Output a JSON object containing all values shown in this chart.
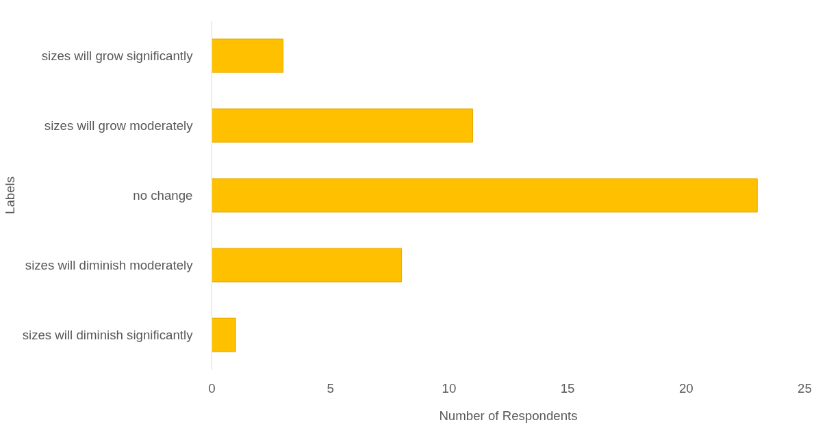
{
  "chart_data": {
    "type": "bar",
    "orientation": "horizontal",
    "xlabel": "Number of Respondents",
    "ylabel": "Labels",
    "categories": [
      "sizes will grow significantly",
      "sizes will grow moderately",
      "no change",
      "sizes will diminish moderately",
      "sizes will diminish significantly"
    ],
    "values": [
      3,
      11,
      23,
      8,
      1
    ],
    "color": "#ffc000",
    "xlim": [
      0,
      25
    ],
    "xticks": [
      0,
      5,
      10,
      15,
      20,
      25
    ],
    "grid": false
  }
}
